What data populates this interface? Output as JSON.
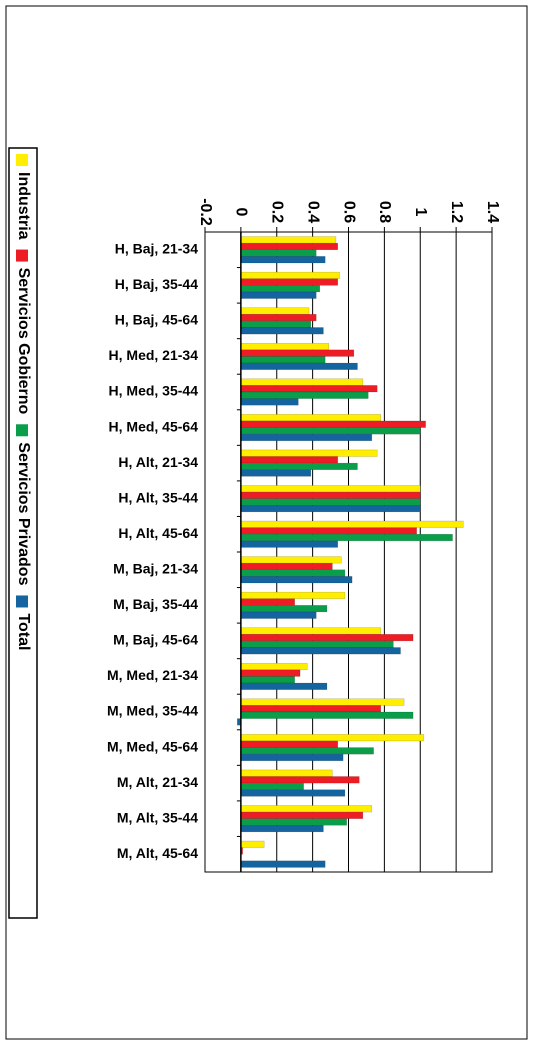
{
  "chart_data": {
    "type": "bar",
    "orientation": "horizontal",
    "categories": [
      "H, Baj, 21-34",
      "H, Baj, 35-44",
      "H, Baj, 45-64",
      "H, Med, 21-34",
      "H, Med, 35-44",
      "H, Med, 45-64",
      "H, Alt, 21-34",
      "H, Alt, 35-44",
      "H, Alt, 45-64",
      "M, Baj, 21-34",
      "M, Baj, 35-44",
      "M, Baj, 45-64",
      "M, Med, 21-34",
      "M, Med, 35-44",
      "M, Med, 45-64",
      "M, Alt, 21-34",
      "M, Alt, 35-44",
      "M, Alt, 45-64"
    ],
    "series": [
      {
        "name": "Industria",
        "color": "#ffee00",
        "values": [
          0.53,
          0.55,
          0.38,
          0.49,
          0.68,
          0.78,
          0.76,
          1.0,
          1.24,
          0.56,
          0.58,
          0.78,
          0.37,
          0.91,
          1.02,
          0.51,
          0.73,
          0.13
        ]
      },
      {
        "name": "Servicios Gobierno",
        "color": "#ee1c25",
        "values": [
          0.54,
          0.54,
          0.42,
          0.63,
          0.76,
          1.03,
          0.54,
          1.0,
          0.98,
          0.51,
          0.3,
          0.96,
          0.33,
          0.78,
          0.54,
          0.66,
          0.68,
          0.01
        ]
      },
      {
        "name": "Servicios Privados",
        "color": "#0a9e4a",
        "values": [
          0.42,
          0.44,
          0.39,
          0.47,
          0.71,
          1.0,
          0.65,
          1.0,
          1.18,
          0.58,
          0.48,
          0.85,
          0.3,
          0.96,
          0.74,
          0.35,
          0.59,
          0
        ]
      },
      {
        "name": "Total",
        "color": "#1464a0",
        "values": [
          0.47,
          0.42,
          0.46,
          0.65,
          0.32,
          0.73,
          0.39,
          1.0,
          0.54,
          0.62,
          0.42,
          0.89,
          0.48,
          -0.02,
          0.57,
          0.58,
          0.46,
          0.47
        ]
      }
    ],
    "xlim": [
      -0.2,
      1.4
    ],
    "xticks": [
      -0.2,
      0,
      0.2,
      0.4,
      0.6,
      0.8,
      1,
      1.2,
      1.4
    ],
    "grid": true
  }
}
